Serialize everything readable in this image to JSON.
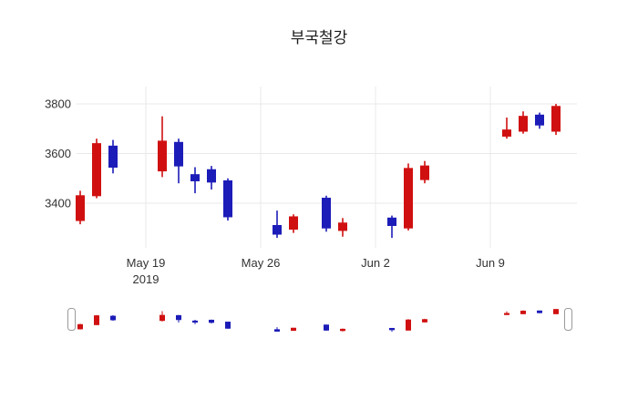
{
  "chart_data": {
    "type": "candlestick",
    "title": "부국철강",
    "increasing_color": "#d01010",
    "decreasing_color": "#1c1cb8",
    "grid": true,
    "legend": "none",
    "rangeslider": true,
    "ylim": [
      3220,
      3870
    ],
    "y_ticks": [
      "3400",
      "3600",
      "3800"
    ],
    "x_ticks": [
      {
        "label": "May 19",
        "sublabel": "2019",
        "day": 4
      },
      {
        "label": "May 26",
        "sublabel": "",
        "day": 11
      },
      {
        "label": "Jun 2",
        "sublabel": "",
        "day": 18
      },
      {
        "label": "Jun 9",
        "sublabel": "",
        "day": 25
      }
    ],
    "ohlc": [
      {
        "date": "2019-05-15",
        "day": 0,
        "open": 3330,
        "high": 3450,
        "low": 3315,
        "close": 3430
      },
      {
        "date": "2019-05-16",
        "day": 1,
        "open": 3430,
        "high": 3660,
        "low": 3420,
        "close": 3640
      },
      {
        "date": "2019-05-17",
        "day": 2,
        "open": 3630,
        "high": 3655,
        "low": 3520,
        "close": 3545
      },
      {
        "date": "2019-05-20",
        "day": 5,
        "open": 3530,
        "high": 3750,
        "low": 3505,
        "close": 3650
      },
      {
        "date": "2019-05-21",
        "day": 6,
        "open": 3645,
        "high": 3660,
        "low": 3480,
        "close": 3550
      },
      {
        "date": "2019-05-22",
        "day": 7,
        "open": 3515,
        "high": 3545,
        "low": 3440,
        "close": 3490
      },
      {
        "date": "2019-05-23",
        "day": 8,
        "open": 3535,
        "high": 3550,
        "low": 3455,
        "close": 3485
      },
      {
        "date": "2019-05-24",
        "day": 9,
        "open": 3490,
        "high": 3500,
        "low": 3330,
        "close": 3345
      },
      {
        "date": "2019-05-27",
        "day": 12,
        "open": 3310,
        "high": 3370,
        "low": 3260,
        "close": 3275
      },
      {
        "date": "2019-05-28",
        "day": 13,
        "open": 3295,
        "high": 3355,
        "low": 3280,
        "close": 3345
      },
      {
        "date": "2019-05-30",
        "day": 15,
        "open": 3420,
        "high": 3430,
        "low": 3285,
        "close": 3300
      },
      {
        "date": "2019-05-31",
        "day": 16,
        "open": 3290,
        "high": 3340,
        "low": 3265,
        "close": 3320
      },
      {
        "date": "2019-06-03",
        "day": 19,
        "open": 3340,
        "high": 3350,
        "low": 3260,
        "close": 3310
      },
      {
        "date": "2019-06-04",
        "day": 20,
        "open": 3300,
        "high": 3560,
        "low": 3290,
        "close": 3540
      },
      {
        "date": "2019-06-05",
        "day": 21,
        "open": 3495,
        "high": 3570,
        "low": 3480,
        "close": 3550
      },
      {
        "date": "2019-06-10",
        "day": 26,
        "open": 3670,
        "high": 3745,
        "low": 3660,
        "close": 3695
      },
      {
        "date": "2019-06-11",
        "day": 27,
        "open": 3690,
        "high": 3770,
        "low": 3680,
        "close": 3750
      },
      {
        "date": "2019-06-12",
        "day": 28,
        "open": 3755,
        "high": 3765,
        "low": 3700,
        "close": 3715
      },
      {
        "date": "2019-06-13",
        "day": 29,
        "open": 3690,
        "high": 3800,
        "low": 3675,
        "close": 3790
      }
    ]
  }
}
